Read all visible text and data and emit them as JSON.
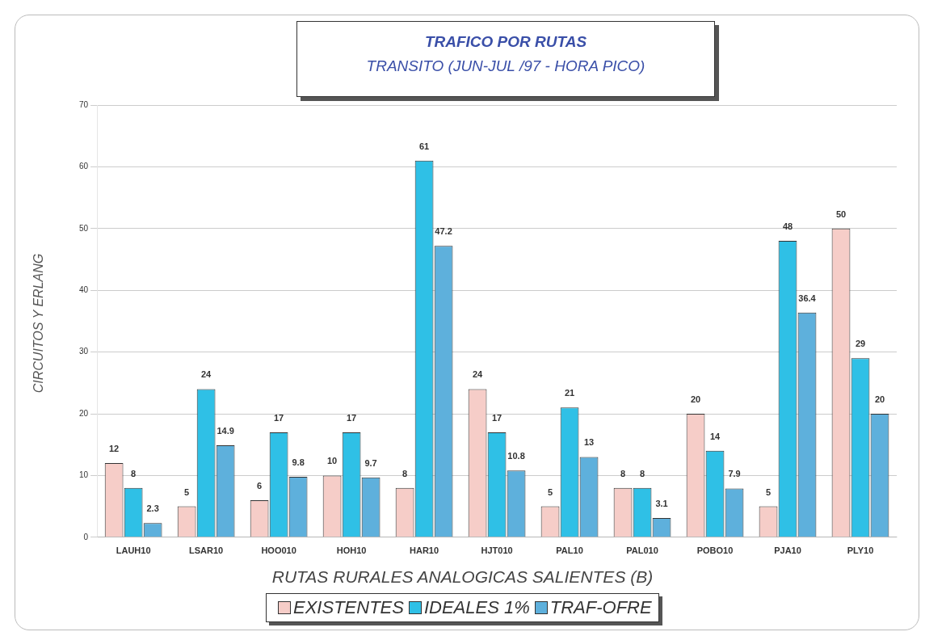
{
  "chart_data": {
    "type": "bar",
    "title": "TRAFICO POR RUTAS",
    "subtitle": "TRANSITO  (JUN-JUL /97 - HORA PICO)",
    "xlabel": "RUTAS RURALES ANALOGICAS SALIENTES (B)",
    "ylabel": "CIRCUITOS Y ERLANG",
    "categories": [
      "LAUH10",
      "LSAR10",
      "HOO010",
      "HOH10",
      "HAR10",
      "HJT010",
      "PAL10",
      "PAL010",
      "POBO10",
      "PJA10",
      "PLY10"
    ],
    "series": [
      {
        "name": "EXISTENTES",
        "color": "#f6cdc8",
        "values": [
          12,
          5,
          6,
          10,
          8,
          24,
          5,
          8,
          20,
          5,
          50
        ]
      },
      {
        "name": "IDEALES 1%",
        "color": "#2fc0e6",
        "values": [
          8,
          24,
          17,
          17,
          61,
          17,
          21,
          8,
          14,
          48,
          29
        ]
      },
      {
        "name": "TRAF-OFRE",
        "color": "#5eb0dc",
        "values": [
          2.3,
          14.9,
          9.8,
          9.7,
          47.2,
          10.8,
          13,
          3.1,
          7.9,
          36.4,
          20
        ]
      }
    ],
    "ylim": [
      0,
      70
    ],
    "yticks": [
      0,
      10,
      20,
      30,
      40,
      50,
      60,
      70
    ],
    "grid": "y",
    "legend": "bottom",
    "data_labels": true
  }
}
